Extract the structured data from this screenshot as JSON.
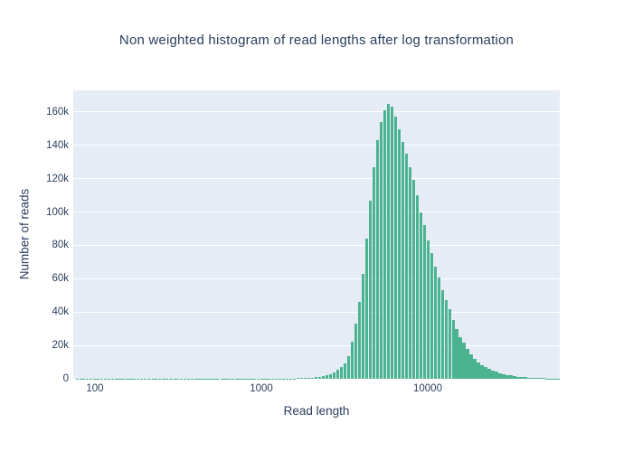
{
  "title": "Non weighted histogram of read lengths after log transformation",
  "colors": {
    "bar": "#4CB391",
    "plot_bg": "#E5ECF6",
    "grid": "#FFFFFF",
    "text": "#2a3f5f",
    "paper_bg": "#FFFFFF"
  },
  "chart_data": {
    "type": "bar",
    "title": "Non weighted histogram of read lengths after log transformation",
    "xlabel": "Read length",
    "ylabel": "Number of reads",
    "legend": "none",
    "grid": "horizontal-only",
    "x_axis": {
      "scale": "log",
      "log_min": 1.8696,
      "log_max": 4.7935,
      "ticks": [
        {
          "value": 100,
          "label": "100"
        },
        {
          "value": 1000,
          "label": "1000"
        },
        {
          "value": 10000,
          "label": "10000"
        }
      ]
    },
    "y_axis": {
      "min": 0,
      "max": 172900,
      "ticks": [
        {
          "value": 0,
          "label": "0"
        },
        {
          "value": 20000,
          "label": "20k"
        },
        {
          "value": 40000,
          "label": "40k"
        },
        {
          "value": 60000,
          "label": "60k"
        },
        {
          "value": 80000,
          "label": "80k"
        },
        {
          "value": 100000,
          "label": "100k"
        },
        {
          "value": 120000,
          "label": "120k"
        },
        {
          "value": 140000,
          "label": "140k"
        },
        {
          "value": 160000,
          "label": "160k"
        }
      ]
    },
    "bins": {
      "read_length": [
        78,
        82,
        86,
        90,
        95,
        100,
        105,
        110,
        116,
        122,
        128,
        135,
        142,
        149,
        157,
        165,
        173,
        182,
        191,
        201,
        212,
        223,
        234,
        246,
        259,
        272,
        286,
        301,
        316,
        332,
        349,
        367,
        386,
        406,
        427,
        449,
        472,
        496,
        522,
        548,
        577,
        606,
        637,
        670,
        705,
        741,
        779,
        819,
        861,
        905,
        952,
        1001,
        1052,
        1106,
        1163,
        1223,
        1286,
        1352,
        1421,
        1494,
        1571,
        1652,
        1737,
        1826,
        1920,
        2018,
        2122,
        2231,
        2345,
        2466,
        2592,
        2725,
        2865,
        3012,
        3167,
        3329,
        3500,
        3680,
        3868,
        4067,
        4276,
        4495,
        4726,
        4968,
        5223,
        5491,
        5773,
        6069,
        6380,
        6708,
        7052,
        7414,
        7794,
        8194,
        8614,
        9056,
        9521,
        10009,
        10523,
        11063,
        11630,
        12227,
        12854,
        13513,
        14206,
        14935,
        15701,
        16507,
        17353,
        18243,
        19179,
        20163,
        21197,
        22284,
        23427,
        24629,
        25892,
        27220,
        28616,
        30084,
        31627,
        33249,
        34955,
        36748,
        38632,
        40614,
        42697,
        44887,
        47189,
        49610,
        52154,
        54829,
        57642,
        60598
      ],
      "count": [
        90,
        90,
        90,
        90,
        90,
        90,
        90,
        90,
        90,
        90,
        90,
        90,
        90,
        90,
        90,
        90,
        90,
        90,
        90,
        90,
        90,
        90,
        90,
        90,
        90,
        90,
        90,
        90,
        90,
        90,
        90,
        90,
        90,
        90,
        90,
        90,
        90,
        90,
        90,
        90,
        90,
        90,
        90,
        90,
        90,
        90,
        90,
        90,
        90,
        90,
        90,
        90,
        90,
        115,
        125,
        140,
        150,
        170,
        190,
        210,
        240,
        280,
        330,
        380,
        450,
        650,
        900,
        1200,
        1650,
        2200,
        2900,
        4000,
        5300,
        7200,
        9400,
        13300,
        22000,
        32800,
        46000,
        63000,
        84000,
        107000,
        127000,
        143000,
        154000,
        161000,
        165000,
        163000,
        157000,
        149500,
        142000,
        135000,
        127000,
        119000,
        110000,
        100000,
        92000,
        83000,
        75500,
        67000,
        60500,
        53000,
        47000,
        41500,
        35000,
        30000,
        25000,
        21500,
        17700,
        14400,
        11700,
        9900,
        8100,
        6900,
        6000,
        5000,
        4300,
        3500,
        2900,
        2400,
        2000,
        1600,
        1300,
        1100,
        900,
        720,
        580,
        470,
        380,
        310,
        260,
        210,
        170,
        140
      ]
    }
  }
}
